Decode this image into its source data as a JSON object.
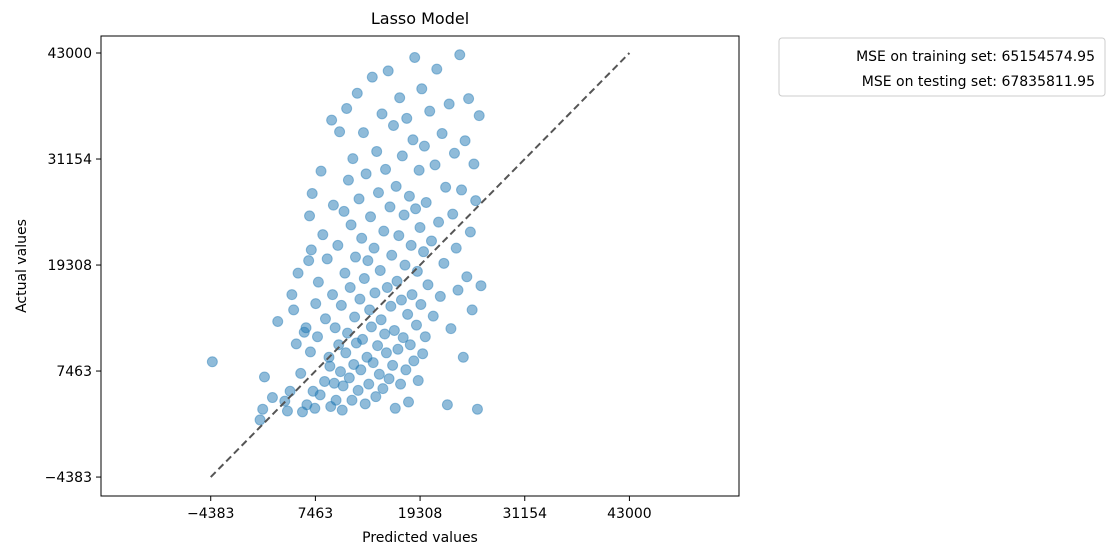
{
  "chart_data": {
    "type": "scatter",
    "title": "Lasso Model",
    "xlabel": "Predicted values",
    "ylabel": "Actual values",
    "xlim": [
      -16800,
      55400
    ],
    "ylim": [
      -6500,
      44900
    ],
    "xticks": [
      -4383,
      7463,
      19308,
      31154,
      43000
    ],
    "yticks": [
      -4383,
      7463,
      19308,
      31154,
      43000
    ],
    "xtick_labels": [
      "−4383",
      "7463",
      "19308",
      "31154",
      "43000"
    ],
    "ytick_labels": [
      "−4383",
      "7463",
      "19308",
      "31154",
      "43000"
    ],
    "grid": false,
    "legend_position": "outside top-right",
    "legend": [
      "MSE on training set: 65154574.95",
      "MSE on testing set: 67835811.95"
    ],
    "reference_line": {
      "style": "dashed",
      "color": "#555555",
      "from": [
        -4383,
        -4383
      ],
      "to": [
        43000,
        43000
      ]
    },
    "point_color": "#1f77b4",
    "point_alpha": 0.5,
    "points": [
      [
        -4200,
        8500
      ],
      [
        1700,
        6800
      ],
      [
        1500,
        3200
      ],
      [
        1200,
        2000
      ],
      [
        2600,
        4500
      ],
      [
        3200,
        13000
      ],
      [
        4000,
        4100
      ],
      [
        4300,
        3000
      ],
      [
        4600,
        5200
      ],
      [
        4800,
        16000
      ],
      [
        5000,
        14300
      ],
      [
        5300,
        10500
      ],
      [
        5500,
        18400
      ],
      [
        5800,
        7200
      ],
      [
        6000,
        2900
      ],
      [
        6200,
        11800
      ],
      [
        6400,
        12300
      ],
      [
        6500,
        3700
      ],
      [
        6700,
        19800
      ],
      [
        6800,
        24800
      ],
      [
        6900,
        9600
      ],
      [
        7000,
        21000
      ],
      [
        7100,
        27300
      ],
      [
        7200,
        5200
      ],
      [
        7400,
        3300
      ],
      [
        7500,
        15000
      ],
      [
        7700,
        11300
      ],
      [
        7800,
        17400
      ],
      [
        8000,
        4800
      ],
      [
        8100,
        29800
      ],
      [
        8300,
        22700
      ],
      [
        8500,
        6300
      ],
      [
        8600,
        13300
      ],
      [
        8800,
        20000
      ],
      [
        9000,
        9000
      ],
      [
        9100,
        8000
      ],
      [
        9200,
        3500
      ],
      [
        9300,
        35500
      ],
      [
        9400,
        16000
      ],
      [
        9500,
        26000
      ],
      [
        9600,
        6100
      ],
      [
        9700,
        12300
      ],
      [
        9800,
        4200
      ],
      [
        10000,
        21500
      ],
      [
        10100,
        10400
      ],
      [
        10200,
        34200
      ],
      [
        10300,
        7400
      ],
      [
        10400,
        14800
      ],
      [
        10500,
        3100
      ],
      [
        10600,
        5800
      ],
      [
        10700,
        25300
      ],
      [
        10800,
        18400
      ],
      [
        10900,
        9500
      ],
      [
        11000,
        36800
      ],
      [
        11100,
        11700
      ],
      [
        11200,
        28800
      ],
      [
        11300,
        6700
      ],
      [
        11400,
        16800
      ],
      [
        11500,
        23800
      ],
      [
        11600,
        4200
      ],
      [
        11700,
        31200
      ],
      [
        11800,
        8200
      ],
      [
        11900,
        13500
      ],
      [
        12000,
        20200
      ],
      [
        12100,
        10600
      ],
      [
        12200,
        38500
      ],
      [
        12300,
        5300
      ],
      [
        12400,
        26700
      ],
      [
        12500,
        15500
      ],
      [
        12600,
        7600
      ],
      [
        12700,
        22300
      ],
      [
        12800,
        11000
      ],
      [
        12900,
        34100
      ],
      [
        13000,
        17800
      ],
      [
        13100,
        3800
      ],
      [
        13200,
        29500
      ],
      [
        13300,
        9000
      ],
      [
        13400,
        19800
      ],
      [
        13500,
        6000
      ],
      [
        13600,
        14300
      ],
      [
        13700,
        24700
      ],
      [
        13800,
        12400
      ],
      [
        13900,
        40300
      ],
      [
        14000,
        8400
      ],
      [
        14100,
        21200
      ],
      [
        14200,
        16200
      ],
      [
        14300,
        4600
      ],
      [
        14400,
        32000
      ],
      [
        14500,
        10300
      ],
      [
        14600,
        27400
      ],
      [
        14700,
        7100
      ],
      [
        14800,
        18700
      ],
      [
        14900,
        13200
      ],
      [
        15000,
        36200
      ],
      [
        15100,
        5500
      ],
      [
        15200,
        23100
      ],
      [
        15300,
        11600
      ],
      [
        15400,
        30000
      ],
      [
        15500,
        9500
      ],
      [
        15600,
        16800
      ],
      [
        15700,
        41000
      ],
      [
        15800,
        6600
      ],
      [
        15900,
        25800
      ],
      [
        16000,
        14700
      ],
      [
        16100,
        20400
      ],
      [
        16200,
        8100
      ],
      [
        16300,
        34900
      ],
      [
        16400,
        12000
      ],
      [
        16500,
        3300
      ],
      [
        16600,
        28100
      ],
      [
        16700,
        17500
      ],
      [
        16800,
        9900
      ],
      [
        16900,
        22600
      ],
      [
        17000,
        38000
      ],
      [
        17100,
        6000
      ],
      [
        17200,
        15400
      ],
      [
        17300,
        31500
      ],
      [
        17400,
        11200
      ],
      [
        17500,
        24900
      ],
      [
        17600,
        19300
      ],
      [
        17700,
        7600
      ],
      [
        17800,
        35700
      ],
      [
        17900,
        13800
      ],
      [
        18000,
        4000
      ],
      [
        18100,
        27000
      ],
      [
        18200,
        10400
      ],
      [
        18300,
        21500
      ],
      [
        18400,
        16000
      ],
      [
        18500,
        33300
      ],
      [
        18600,
        8600
      ],
      [
        18700,
        42500
      ],
      [
        18800,
        25600
      ],
      [
        18900,
        12600
      ],
      [
        19000,
        18600
      ],
      [
        19100,
        6400
      ],
      [
        19200,
        29900
      ],
      [
        19300,
        23500
      ],
      [
        19400,
        14900
      ],
      [
        19500,
        39000
      ],
      [
        19600,
        9400
      ],
      [
        19700,
        20800
      ],
      [
        19800,
        32600
      ],
      [
        19900,
        11300
      ],
      [
        20000,
        26300
      ],
      [
        20200,
        17100
      ],
      [
        20400,
        36500
      ],
      [
        20600,
        22000
      ],
      [
        20800,
        13600
      ],
      [
        21000,
        30500
      ],
      [
        21200,
        41200
      ],
      [
        21400,
        24100
      ],
      [
        21600,
        15800
      ],
      [
        21800,
        34000
      ],
      [
        22000,
        19500
      ],
      [
        22200,
        28000
      ],
      [
        22400,
        3700
      ],
      [
        22600,
        37300
      ],
      [
        22800,
        12200
      ],
      [
        23000,
        25000
      ],
      [
        23200,
        31800
      ],
      [
        23400,
        21200
      ],
      [
        23600,
        16500
      ],
      [
        23800,
        42800
      ],
      [
        24000,
        27700
      ],
      [
        24200,
        9000
      ],
      [
        24400,
        33200
      ],
      [
        24600,
        18000
      ],
      [
        24800,
        37900
      ],
      [
        25000,
        23000
      ],
      [
        25200,
        14300
      ],
      [
        25400,
        30600
      ],
      [
        25600,
        26500
      ],
      [
        25800,
        3200
      ],
      [
        26000,
        36000
      ],
      [
        26200,
        17000
      ]
    ]
  }
}
